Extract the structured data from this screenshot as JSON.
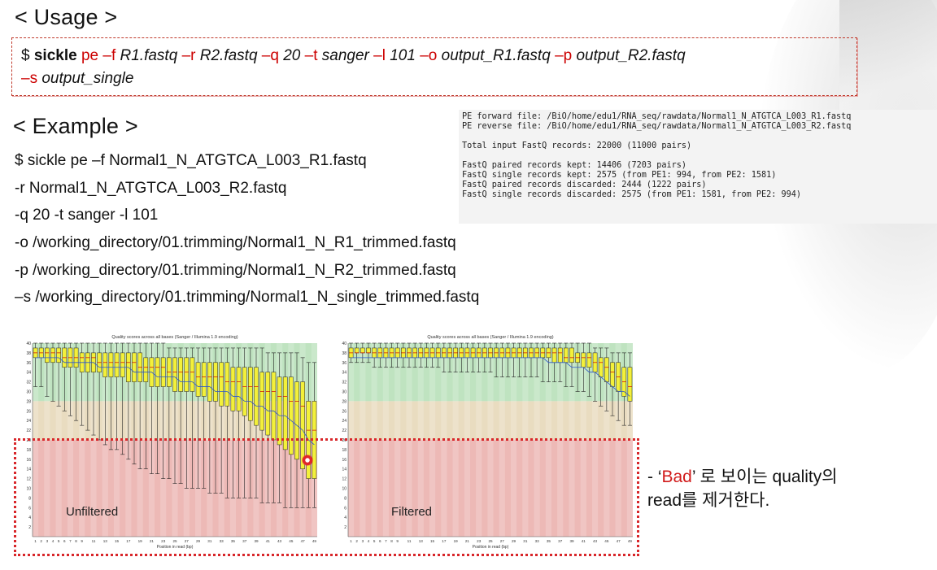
{
  "usage": {
    "title": "< Usage >",
    "line1": [
      {
        "t": "$ ",
        "s": ""
      },
      {
        "t": "sickle",
        "s": "bold"
      },
      {
        "t": " pe ",
        "s": "red"
      },
      {
        "t": "–f ",
        "s": "red"
      },
      {
        "t": "R1.fastq ",
        "s": "it"
      },
      {
        "t": "–r ",
        "s": "red"
      },
      {
        "t": "R2.fastq ",
        "s": "it"
      },
      {
        "t": "–q ",
        "s": "red"
      },
      {
        "t": "20 ",
        "s": "it"
      },
      {
        "t": "–t ",
        "s": "red"
      },
      {
        "t": "sanger ",
        "s": "it"
      },
      {
        "t": "–l ",
        "s": "red"
      },
      {
        "t": "101 ",
        "s": "it"
      },
      {
        "t": "–o ",
        "s": "red"
      },
      {
        "t": "output_R1.fastq ",
        "s": "it"
      },
      {
        "t": "–p ",
        "s": "red"
      },
      {
        "t": "output_R2.fastq",
        "s": "it"
      }
    ],
    "line2": [
      {
        "t": "–s ",
        "s": "red"
      },
      {
        "t": "output_single",
        "s": "it"
      }
    ]
  },
  "example": {
    "title": "< Example >",
    "lines": [
      "$ sickle pe –f Normal1_N_ATGTCA_L003_R1.fastq",
      "-r  Normal1_N_ATGTCA_L003_R2.fastq",
      "-q 20 -t sanger -l 101",
      "-o /working_directory/01.trimming/Normal1_N_R1_trimmed.fastq",
      "-p /working_directory/01.trimming/Normal1_N_R2_trimmed.fastq",
      "–s /working_directory/01.trimming/Normal1_N_single_trimmed.fastq"
    ]
  },
  "console": {
    "lines": [
      "PE forward file: /BiO/home/edu1/RNA_seq/rawdata/Normal1_N_ATGTCA_L003_R1.fastq",
      "PE reverse file: /BiO/home/edu1/RNA_seq/rawdata/Normal1_N_ATGTCA_L003_R2.fastq",
      "",
      "Total input FastQ records: 22000 (11000 pairs)",
      "",
      "FastQ paired records kept: 14406 (7203 pairs)",
      "FastQ single records kept: 2575 (from PE1: 994, from PE2: 1581)",
      "FastQ paired records discarded: 2444 (1222 pairs)",
      "FastQ single records discarded: 2575 (from PE1: 1581, from PE2: 994)"
    ]
  },
  "plots": {
    "unfiltered": {
      "title": "Quality scores across all bases (Sanger / Illumina 1.9 encoding)",
      "xlabel": "Position in read (bp)",
      "label": "Unfiltered"
    },
    "filtered": {
      "title": "Quality scores across all bases (Sanger / Illumina 1.9 encoding)",
      "xlabel": "Position in read (bp)",
      "label": "Filtered"
    }
  },
  "chart_data": [
    {
      "type": "box",
      "title": "Quality scores across all bases (Sanger / Illumina 1.9 encoding)",
      "xlabel": "Position in read (bp)",
      "ylim": [
        0,
        40
      ],
      "yticks": [
        2,
        4,
        6,
        8,
        10,
        12,
        14,
        16,
        18,
        20,
        22,
        24,
        26,
        28,
        30,
        32,
        34,
        36,
        38,
        40
      ],
      "x": [
        1,
        2,
        3,
        4,
        5,
        6,
        7,
        8,
        9,
        10,
        11,
        12,
        13,
        14,
        15,
        16,
        17,
        18,
        19,
        20,
        21,
        22,
        23,
        24,
        25,
        26,
        27,
        28,
        29,
        30,
        31,
        32,
        33,
        34,
        35,
        36,
        37,
        38,
        39,
        40,
        41,
        42,
        43,
        44,
        45,
        46,
        47,
        48,
        49
      ],
      "xticks": [
        "1",
        "2",
        "3",
        "4",
        "5",
        "6",
        "7",
        "8",
        "9",
        "11",
        "13",
        "15",
        "17",
        "19",
        "21",
        "23",
        "25",
        "27",
        "29",
        "31",
        "33",
        "35",
        "37",
        "39",
        "41",
        "43",
        "45",
        "47",
        "49"
      ],
      "q1": [
        37,
        37,
        36,
        36,
        36,
        35,
        35,
        35,
        34,
        34,
        34,
        34,
        33,
        33,
        33,
        33,
        32,
        32,
        32,
        32,
        31,
        31,
        31,
        31,
        30,
        30,
        30,
        30,
        29,
        29,
        28,
        28,
        27,
        27,
        26,
        26,
        25,
        24,
        23,
        22,
        21,
        20,
        19,
        18,
        17,
        16,
        14,
        12,
        12
      ],
      "q3": [
        39,
        39,
        39,
        39,
        39,
        39,
        39,
        39,
        38,
        38,
        38,
        38,
        38,
        38,
        38,
        38,
        38,
        38,
        38,
        37,
        37,
        37,
        37,
        37,
        37,
        37,
        37,
        37,
        36,
        36,
        36,
        36,
        36,
        36,
        35,
        35,
        35,
        35,
        35,
        34,
        34,
        34,
        33,
        33,
        33,
        32,
        32,
        28,
        28
      ],
      "median": [
        38,
        38,
        38,
        38,
        38,
        37,
        37,
        37,
        37,
        37,
        37,
        36,
        36,
        36,
        36,
        36,
        36,
        36,
        35,
        35,
        35,
        35,
        35,
        34,
        34,
        34,
        34,
        34,
        33,
        33,
        33,
        33,
        33,
        32,
        32,
        32,
        31,
        31,
        31,
        30,
        30,
        30,
        29,
        29,
        28,
        28,
        27,
        22,
        22
      ],
      "low": [
        31,
        31,
        29,
        28,
        27,
        26,
        25,
        24,
        23,
        22,
        21,
        20,
        19,
        18,
        18,
        17,
        16,
        15,
        14,
        14,
        13,
        13,
        12,
        12,
        11,
        11,
        10,
        10,
        10,
        10,
        9,
        9,
        9,
        8,
        8,
        8,
        8,
        8,
        8,
        7,
        7,
        7,
        7,
        6,
        6,
        6,
        6,
        6,
        6
      ],
      "high": [
        40,
        40,
        40,
        40,
        40,
        40,
        40,
        40,
        40,
        40,
        40,
        40,
        40,
        40,
        40,
        40,
        40,
        40,
        40,
        40,
        40,
        40,
        40,
        39,
        39,
        39,
        39,
        39,
        39,
        39,
        39,
        39,
        39,
        39,
        39,
        39,
        39,
        39,
        39,
        39,
        38,
        38,
        38,
        38,
        38,
        38,
        37,
        36,
        36
      ],
      "mean": [
        37,
        37,
        37,
        37,
        37,
        36,
        36,
        36,
        36,
        36,
        36,
        35,
        35,
        35,
        35,
        35,
        35,
        34,
        34,
        34,
        34,
        33,
        33,
        33,
        33,
        32,
        32,
        32,
        31,
        31,
        31,
        30,
        30,
        30,
        29,
        29,
        28,
        28,
        27,
        27,
        26,
        26,
        25,
        25,
        24,
        23,
        22,
        20,
        19
      ],
      "zones": [
        {
          "from": 28,
          "to": 40,
          "color": "#bfe3c0"
        },
        {
          "from": 20,
          "to": 28,
          "color": "#e9dcc0"
        },
        {
          "from": 0,
          "to": 20,
          "color": "#edb9b6"
        }
      ],
      "annotation": "Unfiltered"
    },
    {
      "type": "box",
      "title": "Quality scores across all bases (Sanger / Illumina 1.9 encoding)",
      "xlabel": "Position in read (bp)",
      "ylim": [
        0,
        40
      ],
      "yticks": [
        2,
        4,
        6,
        8,
        10,
        12,
        14,
        16,
        18,
        20,
        22,
        24,
        26,
        28,
        30,
        32,
        34,
        36,
        38,
        40
      ],
      "x": [
        1,
        2,
        3,
        4,
        5,
        6,
        7,
        8,
        9,
        10,
        11,
        12,
        13,
        14,
        15,
        16,
        17,
        18,
        19,
        20,
        21,
        22,
        23,
        24,
        25,
        26,
        27,
        28,
        29,
        30,
        31,
        32,
        33,
        34,
        35,
        36,
        37,
        38,
        39,
        40,
        41,
        42,
        43,
        44,
        45,
        46,
        47,
        48,
        49
      ],
      "xticks": [
        "1",
        "2",
        "3",
        "4",
        "5",
        "6",
        "7",
        "8",
        "9",
        "11",
        "13",
        "15",
        "17",
        "19",
        "21",
        "23",
        "25",
        "27",
        "29",
        "31",
        "33",
        "35",
        "37",
        "39",
        "41",
        "43",
        "45",
        "47",
        "49"
      ],
      "q1": [
        37,
        38,
        38,
        38,
        37,
        37,
        37,
        37,
        37,
        37,
        37,
        37,
        37,
        37,
        37,
        37,
        37,
        37,
        37,
        37,
        37,
        37,
        37,
        37,
        37,
        37,
        37,
        37,
        37,
        37,
        37,
        37,
        37,
        37,
        37,
        36,
        36,
        36,
        36,
        36,
        35,
        35,
        34,
        33,
        32,
        31,
        30,
        29,
        28
      ],
      "q3": [
        39,
        39,
        39,
        39,
        39,
        39,
        39,
        39,
        39,
        39,
        39,
        39,
        39,
        39,
        39,
        39,
        39,
        39,
        39,
        39,
        39,
        39,
        39,
        39,
        39,
        39,
        39,
        39,
        39,
        39,
        39,
        39,
        39,
        39,
        39,
        39,
        39,
        39,
        39,
        38,
        38,
        38,
        38,
        37,
        37,
        36,
        36,
        35,
        35
      ],
      "median": [
        38,
        38,
        38,
        38,
        38,
        38,
        38,
        38,
        38,
        38,
        38,
        38,
        38,
        38,
        38,
        38,
        38,
        38,
        38,
        38,
        38,
        38,
        38,
        38,
        38,
        38,
        38,
        38,
        38,
        38,
        38,
        38,
        38,
        38,
        38,
        38,
        38,
        37,
        37,
        37,
        37,
        37,
        36,
        36,
        35,
        34,
        33,
        32,
        31
      ],
      "low": [
        36,
        36,
        36,
        36,
        35,
        35,
        35,
        35,
        35,
        35,
        35,
        35,
        35,
        35,
        35,
        35,
        34,
        34,
        34,
        34,
        34,
        34,
        34,
        34,
        34,
        33,
        33,
        33,
        33,
        33,
        33,
        33,
        33,
        32,
        32,
        32,
        32,
        31,
        31,
        30,
        30,
        29,
        28,
        27,
        26,
        25,
        24,
        23,
        23
      ],
      "high": [
        40,
        40,
        40,
        40,
        40,
        40,
        40,
        40,
        40,
        40,
        40,
        40,
        40,
        40,
        40,
        40,
        40,
        40,
        40,
        40,
        40,
        40,
        40,
        40,
        40,
        40,
        40,
        40,
        40,
        40,
        40,
        40,
        40,
        40,
        40,
        40,
        40,
        40,
        40,
        40,
        40,
        40,
        39,
        39,
        39,
        38,
        38,
        38,
        38
      ],
      "mean": [
        37,
        37,
        37,
        37,
        37,
        37,
        37,
        37,
        37,
        37,
        37,
        37,
        37,
        37,
        37,
        37,
        37,
        37,
        37,
        37,
        37,
        37,
        37,
        37,
        37,
        37,
        37,
        37,
        37,
        37,
        37,
        37,
        37,
        37,
        36,
        36,
        36,
        36,
        35,
        35,
        35,
        34,
        34,
        33,
        32,
        31,
        30,
        30,
        29
      ],
      "zones": [
        {
          "from": 28,
          "to": 40,
          "color": "#bfe3c0"
        },
        {
          "from": 20,
          "to": 28,
          "color": "#e9dcc0"
        },
        {
          "from": 0,
          "to": 20,
          "color": "#edb9b6"
        }
      ],
      "annotation": "Filtered"
    }
  ],
  "note": {
    "prefix": "- ‘",
    "bad": "Bad",
    "suffix1": "’ 로 보이는 quality의",
    "line2": "read를 제거한다."
  },
  "colors": {
    "accent_red": "#cc0000",
    "box_fill": "#f3f03a",
    "frame_red": "#d8262a"
  }
}
